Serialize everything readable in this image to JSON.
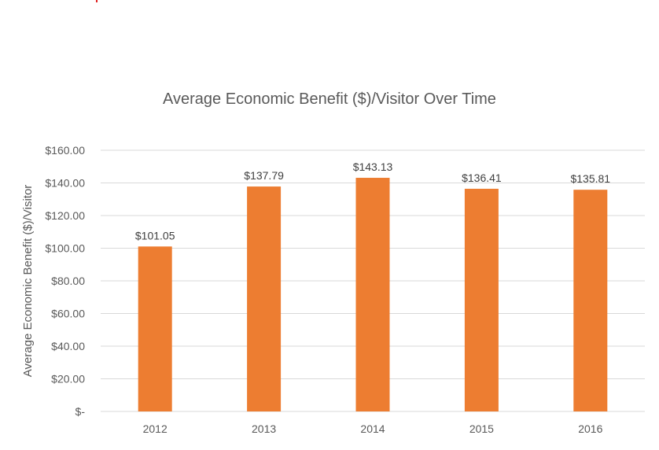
{
  "chart_data": {
    "type": "bar",
    "title": "Average Economic Benefit ($)/Visitor Over Time",
    "xlabel": "",
    "ylabel": "Average Economic Benefit ($)/Visitor",
    "categories": [
      "2012",
      "2013",
      "2014",
      "2015",
      "2016"
    ],
    "values": [
      101.05,
      137.79,
      143.13,
      136.41,
      135.81
    ],
    "data_labels": [
      "$101.05",
      "$137.79",
      "$143.13",
      "$136.41",
      "$135.81"
    ],
    "ylim": [
      0,
      160
    ],
    "y_ticks": [
      0,
      20,
      40,
      60,
      80,
      100,
      120,
      140,
      160
    ],
    "y_tick_labels": [
      "$-",
      "$20.00",
      "$40.00",
      "$60.00",
      "$80.00",
      "$100.00",
      "$120.00",
      "$140.00",
      "$160.00"
    ],
    "grid": true,
    "legend": "none",
    "colors": {
      "bar": "#ED7D31",
      "grid": "#D9D9D9",
      "text": "#595959",
      "title": "#595959"
    }
  }
}
